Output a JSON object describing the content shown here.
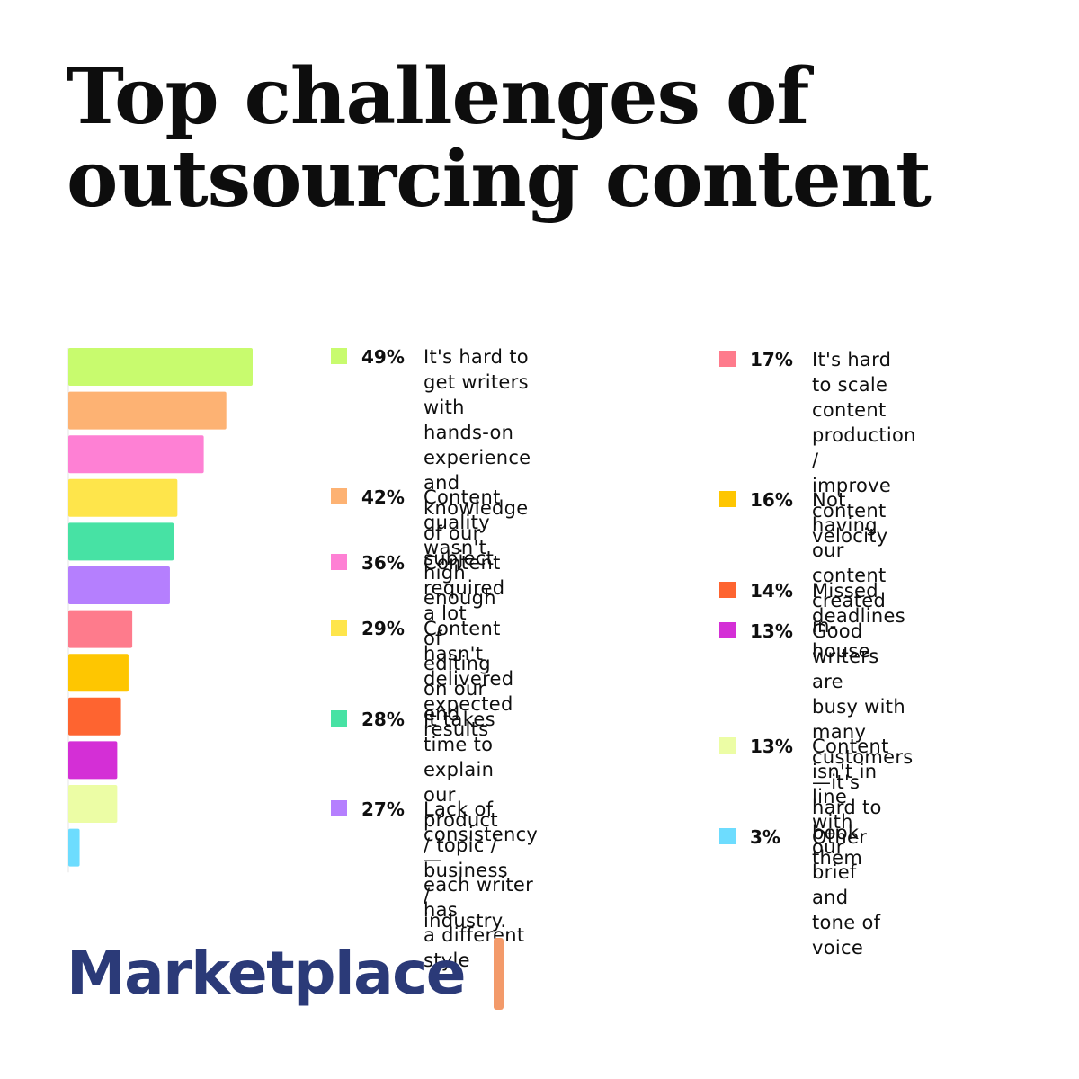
{
  "title_line1": "Top challenges of",
  "title_line2": "outsourcing content",
  "brand": "Marketplace",
  "brand_bar_color": "#f39a6a",
  "brand_text_color": "#2b3a78",
  "chart_data": {
    "type": "bar",
    "orientation": "horizontal",
    "title": "Top challenges of outsourcing content",
    "xlabel": "",
    "ylabel": "",
    "xlim": [
      0,
      49
    ],
    "grid": false,
    "legend_placement": "right",
    "categories": [
      "It's hard to get writers\nwith hands-on\nexperience and\nknowledge\nof our subject",
      "Content quality\nwasn't high enough",
      "Content required a lot\nof editing on our end",
      "Content hasn't\ndelivered\nexpected results",
      "It takes time to explain\nour product / topic /\nbusiness / industry.",
      "Lack of consistency—\neach writer has\na different style",
      "It's hard\nto scale content\nproduction /\nimprove content\nvelocity",
      "Not having our\ncontent created\nin-house",
      "Missed deadlines",
      "Good writers are\nbusy with many\ncustomers—it's\nhard to book them",
      "Content isn't in line\nwith our brief and\ntone of voice",
      "Other"
    ],
    "values": [
      49,
      42,
      36,
      29,
      28,
      27,
      17,
      16,
      14,
      13,
      13,
      3
    ],
    "value_labels": [
      "49%",
      "42%",
      "36%",
      "29%",
      "28%",
      "27%",
      "17%",
      "16%",
      "14%",
      "13%",
      "13%",
      "3%"
    ],
    "colors": [
      "#c8fb6e",
      "#fdb273",
      "#fe80d4",
      "#fee54b",
      "#47e2a4",
      "#b57ffe",
      "#fe7b8c",
      "#fec601",
      "#fe6430",
      "#d42fd6",
      "#ecfda5",
      "#6ddcfe"
    ]
  }
}
